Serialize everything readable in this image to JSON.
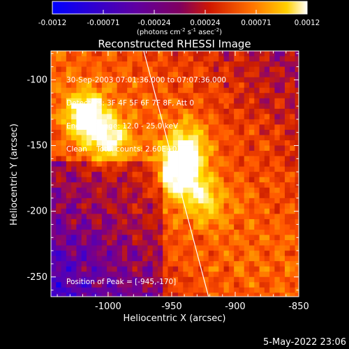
{
  "colorbar": {
    "tick_labels": [
      "-0.0012",
      "-0.00071",
      "-0.00024",
      "0.00024",
      "0.00071",
      "0.0012"
    ],
    "units_label_parts": [
      "(photons cm",
      "-2",
      " s",
      "-1",
      " asec",
      "-2",
      ")"
    ],
    "range": [
      -0.0012,
      0.0012
    ]
  },
  "header": {
    "title": "Reconstructed RHESSI Image"
  },
  "info": {
    "time_range": "30-Sep-2003 07:01:36.000 to 07:07:36.000",
    "detectors": "Detectors: 3F 4F 5F 6F 7F 8F, Att 0",
    "energy": "Energy Range: 12.0 - 25.0 keV",
    "clean": "Clean    Total counts: 2.60E+03"
  },
  "peak_text": "Position of Peak = [-945,-170]",
  "footer_date": "5-May-2022 23:06",
  "chart_data": {
    "type": "heatmap",
    "title": "Reconstructed RHESSI Image",
    "xlabel": "Heliocentric X (arcsec)",
    "ylabel": "Heliocentric Y (arcsec)",
    "xlim": [
      -1045,
      -850
    ],
    "ylim": [
      -265,
      -78
    ],
    "x_ticks": [
      -1000,
      -950,
      -900,
      -850
    ],
    "y_ticks": [
      -100,
      -150,
      -200,
      -250
    ],
    "x_tick_labels": [
      "-1000",
      "-950",
      "-900",
      "-850"
    ],
    "y_tick_labels": [
      "-100",
      "-150",
      "-200",
      "-250"
    ],
    "peak_position": [
      -945,
      -170
    ],
    "bright_sources": [
      {
        "x": -1018,
        "y": -127,
        "level": 0.95
      },
      {
        "x": -1000,
        "y": -145,
        "level": 0.75
      },
      {
        "x": -945,
        "y": -170,
        "level": 1.0
      },
      {
        "x": -938,
        "y": -150,
        "level": 0.65
      },
      {
        "x": -925,
        "y": -190,
        "level": 0.55
      }
    ],
    "limb_line": [
      [
        -972,
        -78
      ],
      [
        -921,
        -265
      ]
    ],
    "colormap": [
      "#0000ff",
      "#4b00c0",
      "#800080",
      "#cc1e00",
      "#ff5000",
      "#ffa000",
      "#ffe000",
      "#ffffff"
    ],
    "grid": false,
    "colorbar_position": "top"
  }
}
